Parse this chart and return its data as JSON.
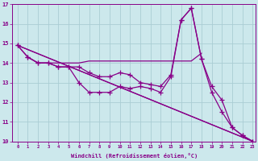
{
  "xlabel": "Windchill (Refroidissement éolien,°C)",
  "background_color": "#cce8ec",
  "grid_color": "#aacdd4",
  "line_color": "#880088",
  "xmin": 0,
  "xmax": 23,
  "ymin": 10,
  "ymax": 17,
  "yticks": [
    10,
    11,
    12,
    13,
    14,
    15,
    16,
    17
  ],
  "xticks": [
    0,
    1,
    2,
    3,
    4,
    5,
    6,
    7,
    8,
    9,
    10,
    11,
    12,
    13,
    14,
    15,
    16,
    17,
    18,
    19,
    20,
    21,
    22,
    23
  ],
  "lines": [
    {
      "x": [
        1,
        2,
        3,
        4,
        5,
        6,
        7,
        8,
        9,
        10,
        11,
        12,
        13,
        14,
        15,
        16,
        17,
        18
      ],
      "y": [
        14.3,
        14.0,
        14.0,
        14.0,
        14.0,
        14.0,
        14.1,
        14.1,
        14.1,
        14.1,
        14.1,
        14.1,
        14.1,
        14.1,
        14.1,
        14.1,
        14.1,
        14.5
      ]
    },
    {
      "x": [
        0,
        1,
        2,
        3,
        4,
        5,
        6,
        7,
        8,
        9,
        10,
        11,
        12,
        13,
        14,
        15,
        16,
        17,
        18,
        19,
        20,
        21,
        22,
        23
      ],
      "y": [
        14.9,
        14.3,
        14.0,
        14.0,
        13.8,
        13.8,
        13.8,
        13.5,
        13.3,
        13.3,
        13.5,
        13.4,
        13.0,
        12.9,
        12.8,
        13.4,
        16.2,
        16.8,
        14.2,
        12.8,
        12.1,
        10.7,
        10.3,
        10.0
      ]
    },
    {
      "x": [
        0,
        1,
        2,
        3,
        4,
        5,
        6,
        7,
        8,
        9,
        10,
        11,
        12,
        13,
        14,
        15,
        16,
        17,
        18,
        19,
        20,
        21,
        22,
        23
      ],
      "y": [
        14.9,
        14.3,
        14.0,
        14.0,
        13.8,
        13.8,
        13.0,
        12.5,
        12.5,
        12.5,
        12.8,
        12.7,
        12.8,
        12.7,
        12.5,
        13.3,
        16.2,
        16.8,
        14.2,
        12.5,
        11.5,
        10.7,
        10.3,
        10.0
      ]
    },
    {
      "x": [
        0,
        23
      ],
      "y": [
        14.9,
        10.0
      ]
    }
  ],
  "marker_lines": [
    1,
    2
  ]
}
